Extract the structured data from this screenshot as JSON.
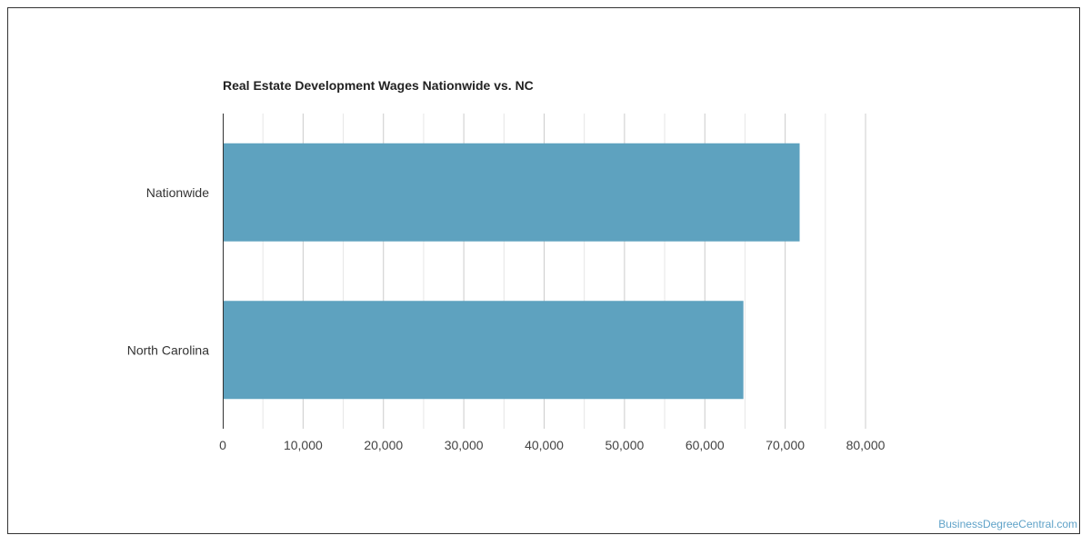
{
  "chart_data": {
    "type": "bar",
    "orientation": "horizontal",
    "title": "Real Estate Development Wages Nationwide vs. NC",
    "categories": [
      "Nationwide",
      "North Carolina"
    ],
    "values": [
      71800,
      64800
    ],
    "xlim": [
      0,
      80000
    ],
    "x_ticks": [
      "0",
      "10,000",
      "20,000",
      "30,000",
      "40,000",
      "50,000",
      "60,000",
      "70,000",
      "80,000"
    ],
    "grid": true,
    "bar_color": "#5ea2bf",
    "grid_color": "#cccccc",
    "minor_grid_color": "#e6e6e6"
  },
  "watermark": "BusinessDegreeCentral.com"
}
